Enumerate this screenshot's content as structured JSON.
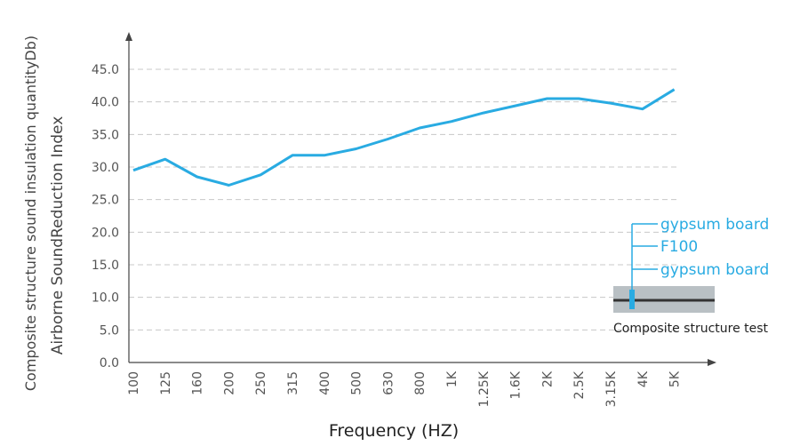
{
  "chart_data": {
    "type": "line",
    "ylabel_line1": "Composite structure sound insulation quantityDb)",
    "ylabel_line2": "Airborne SoundReduction Index",
    "xlabel": "Frequency (HZ)",
    "categories": [
      "100",
      "125",
      "160",
      "200",
      "250",
      "315",
      "400",
      "500",
      "630",
      "800",
      "1K",
      "1.25K",
      "1.6K",
      "2K",
      "2.5K",
      "3.15K",
      "4K",
      "5K"
    ],
    "y_ticks": [
      "0.0",
      "5.0",
      "10.0",
      "15.0",
      "20.0",
      "25.0",
      "30.0",
      "35.0",
      "40.0",
      "45.0"
    ],
    "ylim": [
      0,
      45
    ],
    "grid": "horizontal dashed",
    "series": [
      {
        "values": [
          29.5,
          31.2,
          28.5,
          27.2,
          28.8,
          31.8,
          31.8,
          32.8,
          34.3,
          36.0,
          37.0,
          38.3,
          39.4,
          40.5,
          40.5,
          39.8,
          38.9,
          41.9
        ],
        "color": "#29abe2"
      }
    ],
    "legend": {
      "labels": [
        "gypsum board",
        "F100",
        "gypsum board"
      ],
      "caption": "Composite structure test",
      "placement": "bottom-right"
    }
  }
}
